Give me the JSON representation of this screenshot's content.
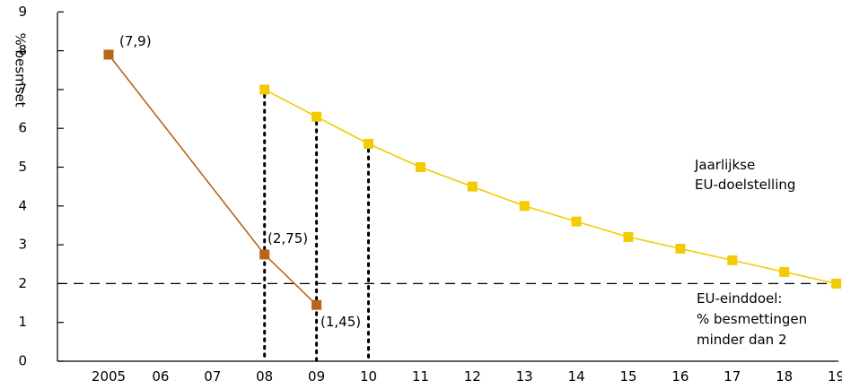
{
  "chart_data": {
    "type": "line",
    "ylabel": "% besmset",
    "ylim": [
      0,
      9
    ],
    "yticks": [
      "0",
      "1",
      "2",
      "3",
      "4",
      "5",
      "6",
      "7",
      "8",
      "9"
    ],
    "xticks": [
      "2005",
      "06",
      "07",
      "08",
      "09",
      "10",
      "11",
      "12",
      "13",
      "14",
      "15",
      "16",
      "17",
      "18",
      "19"
    ],
    "colors": {
      "actual": "#b8651a",
      "target": "#f2cc00",
      "threshold": "#000000"
    },
    "series": [
      {
        "key": "actual",
        "x": [
          "2005",
          "08",
          "09"
        ],
        "y": [
          7.9,
          2.75,
          1.45
        ]
      },
      {
        "key": "target",
        "x": [
          "08",
          "09",
          "10",
          "11",
          "12",
          "13",
          "14",
          "15",
          "16",
          "17",
          "18",
          "19"
        ],
        "y": [
          7.0,
          6.3,
          5.6,
          5.0,
          4.5,
          4.0,
          3.6,
          3.2,
          2.9,
          2.6,
          2.3,
          2.0
        ]
      }
    ],
    "threshold": 2,
    "dotted_years": [
      "08",
      "09",
      "10"
    ],
    "point_labels": [
      "(7,9)",
      "(2,75)",
      "(1,45)"
    ],
    "annotations": {
      "target_label": [
        "Jaarlijkse",
        "EU-doelstelling"
      ],
      "threshold_label": [
        "EU-einddoel:",
        "% besmettingen",
        "minder dan 2"
      ]
    }
  }
}
